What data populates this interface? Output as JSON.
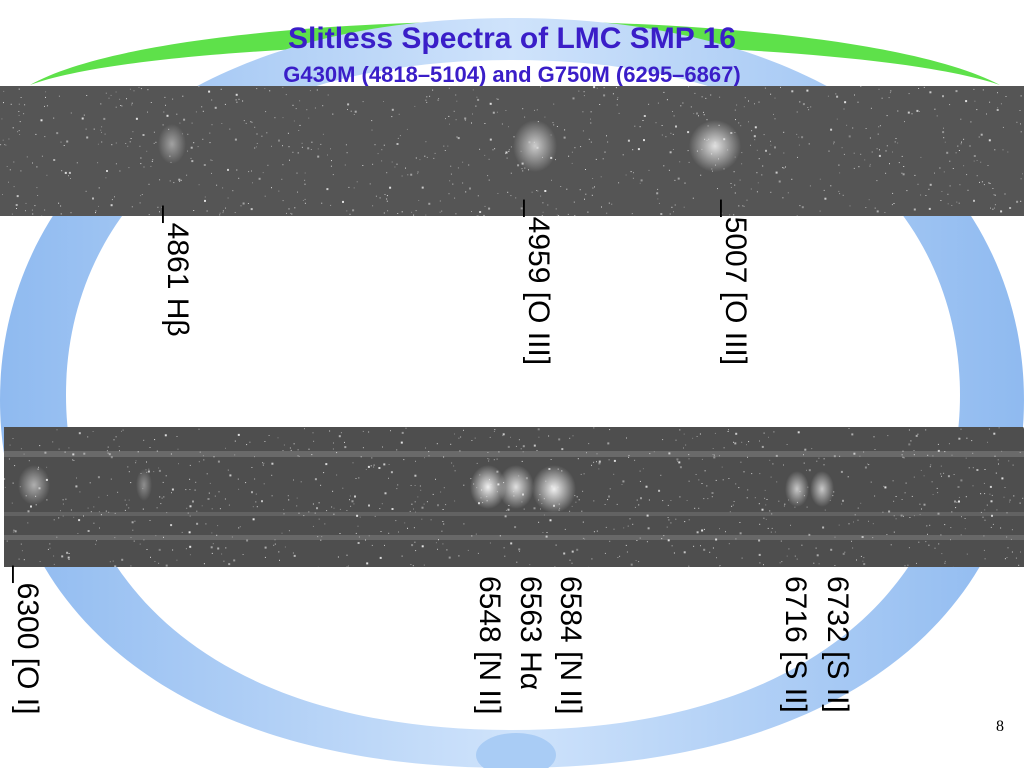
{
  "slide": {
    "title": "Slitless Spectra of LMC SMP 16",
    "subtitle": "G430M (4818–5104)  and G750M (6295–6867)",
    "page_number": "8"
  },
  "labels": {
    "top": [
      {
        "id": "hbeta",
        "text": "_4861 Hβ"
      },
      {
        "id": "oiii-4959",
        "text": "_4959 [O III]"
      },
      {
        "id": "oiii-5007",
        "text": "_5007 [O III]"
      }
    ],
    "bottom": [
      {
        "id": "oi-6300",
        "text": "_6300 [O I]"
      },
      {
        "id": "nii-6548",
        "text": "6548 [N II]"
      },
      {
        "id": "halpha-6563",
        "text": "6563 Hα"
      },
      {
        "id": "nii-6584",
        "text": "6584 [N II]"
      },
      {
        "id": "sii-6716",
        "text": "6716 [S II]"
      },
      {
        "id": "sii-6732",
        "text": "6732 [S II]"
      }
    ]
  },
  "colors": {
    "title": "#3a1ec8",
    "arc_blue": "#a9ccf5",
    "arc_green": "#5ee14a"
  }
}
